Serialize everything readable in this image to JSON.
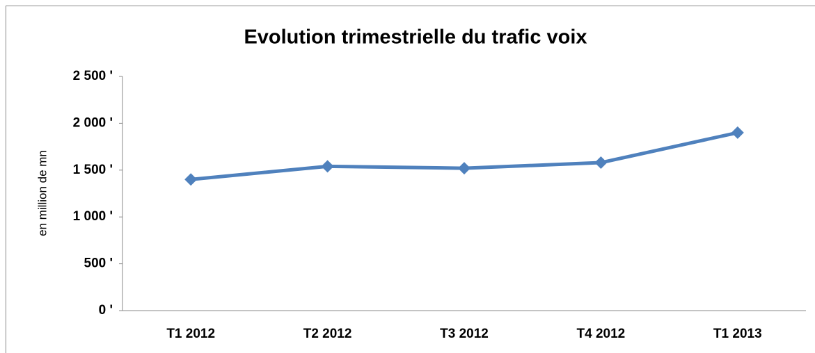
{
  "chart_data": {
    "type": "line",
    "title": "Evolution trimestrielle du trafic voix",
    "ylabel": "en million de mn",
    "categories": [
      "T1 2012",
      "T2 2012",
      "T3 2012",
      "T4 2012",
      "T1 2013"
    ],
    "series": [
      {
        "color": "#4f81bd",
        "values": [
          1400,
          1540,
          1520,
          1580,
          1900
        ]
      }
    ],
    "ylim": [
      0,
      2500
    ],
    "yticks": [
      {
        "value": 0,
        "label": "0 '"
      },
      {
        "value": 500,
        "label": "500 '"
      },
      {
        "value": 1000,
        "label": "1 000 '"
      },
      {
        "value": 1500,
        "label": "1 500 '"
      },
      {
        "value": 2000,
        "label": "2 000 '"
      },
      {
        "value": 2500,
        "label": "2 500 '"
      }
    ],
    "grid": false
  }
}
